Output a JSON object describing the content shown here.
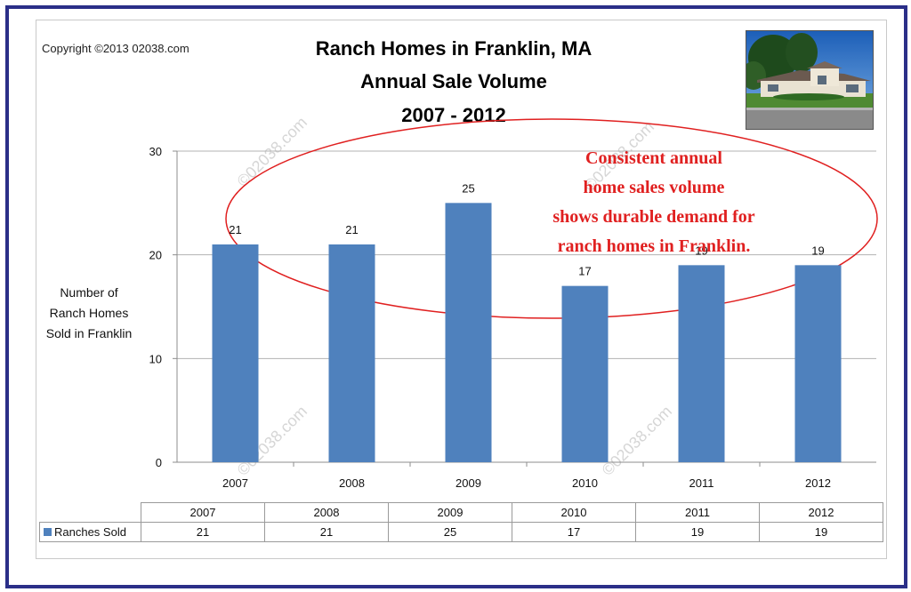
{
  "copyright": "Copyright ©2013 02038.com",
  "title_lines": [
    "Ranch Homes in Franklin, MA",
    "Annual Sale Volume",
    "2007 - 2012"
  ],
  "ylabel_lines": [
    "Number of",
    "Ranch Homes",
    "Sold in Franklin"
  ],
  "annotation_lines": [
    "Consistent annual",
    "home sales volume",
    "shows durable demand for",
    "ranch homes in Franklin."
  ],
  "watermark": "©02038.com",
  "colors": {
    "bar": "#4f81bd",
    "annotation": "#e02020",
    "frame": "#2b2f88"
  },
  "chart_data": {
    "type": "bar",
    "categories": [
      "2007",
      "2008",
      "2009",
      "2010",
      "2011",
      "2012"
    ],
    "series": [
      {
        "name": "Ranches Sold",
        "values": [
          21,
          21,
          25,
          17,
          19,
          19
        ]
      }
    ],
    "title": "Ranch Homes in Franklin, MA Annual Sale Volume 2007 - 2012",
    "ylabel": "Number of Ranch Homes Sold in Franklin",
    "ylim": [
      0,
      30
    ],
    "yticks": [
      0,
      10,
      20,
      30
    ],
    "grid": true,
    "data_labels": true,
    "legend": "data table below chart"
  },
  "table": {
    "header": [
      "2007",
      "2008",
      "2009",
      "2010",
      "2011",
      "2012"
    ],
    "row_label": "Ranches Sold",
    "row_values": [
      "21",
      "21",
      "25",
      "17",
      "19",
      "19"
    ]
  }
}
